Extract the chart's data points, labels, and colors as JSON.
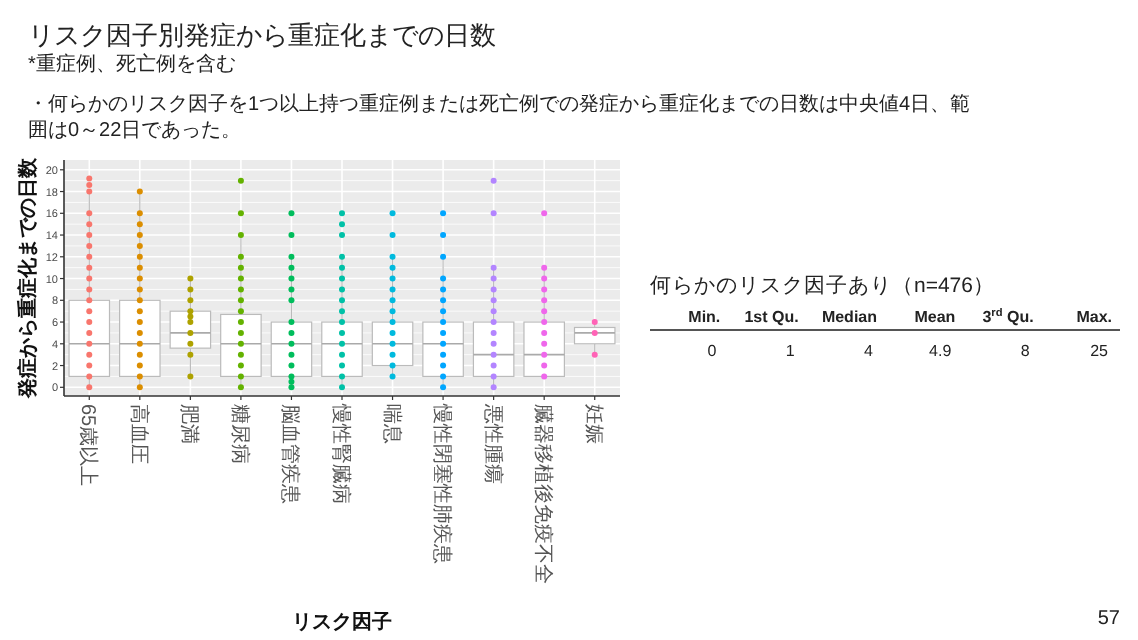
{
  "chart_data": [
    {
      "type": "box",
      "title": "リスク因子別発症から重症化までの日数",
      "subtitle": "*重症例、死亡例を含む",
      "annotations": [
        "・何らかのリスク因子を1つ以上持つ重症例または死亡例での発症から重症化までの日数は中央値4日、範囲は0～22日であった。",
        "57"
      ],
      "xlabel": "リスク因子",
      "ylabel": "発症から重症化までの日数",
      "categories": [
        "65歳以上",
        "高血圧",
        "肥満",
        "糖尿病",
        "脳血管疾患",
        "慢性腎臓病",
        "喘息",
        "慢性閉塞性肺疾患",
        "悪性腫瘍",
        "臓器移植後免疫不全",
        "妊娠"
      ],
      "boxes": [
        {
          "low": 0,
          "q1": 1,
          "median": 4,
          "q3": 8,
          "high": 18
        },
        {
          "low": 0,
          "q1": 1,
          "median": 4,
          "q3": 8,
          "high": 18
        },
        {
          "low": 1,
          "q1": 3.6,
          "median": 5,
          "q3": 7,
          "high": 10
        },
        {
          "low": 0,
          "q1": 1,
          "median": 4,
          "q3": 6.7,
          "high": 14
        },
        {
          "low": 0,
          "q1": 1,
          "median": 4,
          "q3": 6,
          "high": 12
        },
        {
          "low": 0,
          "q1": 1,
          "median": 4,
          "q3": 6,
          "high": 12
        },
        {
          "low": 1,
          "q1": 2,
          "median": 4,
          "q3": 6,
          "high": 12
        },
        {
          "low": 0,
          "q1": 1,
          "median": 4,
          "q3": 6,
          "high": 12
        },
        {
          "low": 0,
          "q1": 1,
          "median": 3,
          "q3": 6,
          "high": 11
        },
        {
          "low": 1,
          "q1": 1,
          "median": 3,
          "q3": 6,
          "high": 11
        },
        {
          "low": 3,
          "q1": 4,
          "median": 5,
          "q3": 5.5,
          "high": 6
        }
      ],
      "series": [
        {
          "type": "scatter",
          "color": "#f8766d",
          "x": [
            "65歳以上",
            "65歳以上",
            "65歳以上",
            "65歳以上",
            "65歳以上",
            "65歳以上",
            "65歳以上",
            "65歳以上",
            "65歳以上",
            "65歳以上",
            "65歳以上",
            "65歳以上",
            "65歳以上",
            "65歳以上",
            "65歳以上",
            "65歳以上",
            "65歳以上",
            "65歳以上",
            "65歳以上",
            "65歳以上"
          ],
          "values": [
            0,
            1,
            2,
            3,
            4,
            5,
            6,
            7,
            8,
            9,
            10,
            11,
            12,
            13,
            14,
            15,
            16,
            18,
            18.6,
            19.2
          ]
        },
        {
          "type": "scatter",
          "color": "#db8e00",
          "x": [
            "高血圧",
            "高血圧",
            "高血圧",
            "高血圧",
            "高血圧",
            "高血圧",
            "高血圧",
            "高血圧",
            "高血圧",
            "高血圧",
            "高血圧",
            "高血圧",
            "高血圧",
            "高血圧",
            "高血圧",
            "高血圧",
            "高血圧",
            "高血圧"
          ],
          "values": [
            0,
            1,
            2,
            3,
            4,
            5,
            6,
            7,
            8,
            9,
            10,
            11,
            12,
            13,
            14,
            15,
            16,
            18
          ]
        },
        {
          "type": "scatter",
          "color": "#aea200",
          "x": [
            "肥満",
            "肥満",
            "肥満",
            "肥満",
            "肥満",
            "肥満",
            "肥満",
            "肥満",
            "肥満",
            "肥満"
          ],
          "values": [
            1,
            3,
            4,
            5,
            6,
            6.5,
            7,
            8,
            9,
            10
          ]
        },
        {
          "type": "scatter",
          "color": "#64b200",
          "x": [
            "糖尿病",
            "糖尿病",
            "糖尿病",
            "糖尿病",
            "糖尿病",
            "糖尿病",
            "糖尿病",
            "糖尿病",
            "糖尿病",
            "糖尿病",
            "糖尿病",
            "糖尿病",
            "糖尿病",
            "糖尿病",
            "糖尿病",
            "糖尿病"
          ],
          "values": [
            0,
            1,
            2,
            3,
            4,
            5,
            6,
            7,
            8,
            9,
            10,
            11,
            12,
            14,
            16,
            19
          ]
        },
        {
          "type": "scatter",
          "color": "#00bd5c",
          "x": [
            "脳血管疾患",
            "脳血管疾患",
            "脳血管疾患",
            "脳血管疾患",
            "脳血管疾患",
            "脳血管疾患",
            "脳血管疾患",
            "脳血管疾患",
            "脳血管疾患",
            "脳血管疾患",
            "脳血管疾患",
            "脳血管疾患",
            "脳血管疾患",
            "脳血管疾患",
            "脳血管疾患"
          ],
          "values": [
            0,
            1,
            2,
            3,
            4,
            5,
            6,
            8,
            9,
            10,
            11,
            12,
            14,
            16,
            0.5
          ]
        },
        {
          "type": "scatter",
          "color": "#00c1a7",
          "x": [
            "慢性腎臓病",
            "慢性腎臓病",
            "慢性腎臓病",
            "慢性腎臓病",
            "慢性腎臓病",
            "慢性腎臓病",
            "慢性腎臓病",
            "慢性腎臓病",
            "慢性腎臓病",
            "慢性腎臓病",
            "慢性腎臓病",
            "慢性腎臓病",
            "慢性腎臓病",
            "慢性腎臓病",
            "慢性腎臓病",
            "慢性腎臓病"
          ],
          "values": [
            0,
            1,
            2,
            3,
            4,
            5,
            6,
            7,
            8,
            9,
            10,
            11,
            12,
            14,
            15,
            16
          ]
        },
        {
          "type": "scatter",
          "color": "#00bade",
          "x": [
            "喘息",
            "喘息",
            "喘息",
            "喘息",
            "喘息",
            "喘息",
            "喘息",
            "喘息",
            "喘息",
            "喘息",
            "喘息",
            "喘息",
            "喘息",
            "喘息"
          ],
          "values": [
            1,
            2,
            3,
            4,
            5,
            6,
            7,
            8,
            9,
            10,
            11,
            12,
            14,
            16
          ]
        },
        {
          "type": "scatter",
          "color": "#00a6ff",
          "x": [
            "慢性閉塞性肺疾患",
            "慢性閉塞性肺疾患",
            "慢性閉塞性肺疾患",
            "慢性閉塞性肺疾患",
            "慢性閉塞性肺疾患",
            "慢性閉塞性肺疾患",
            "慢性閉塞性肺疾患",
            "慢性閉塞性肺疾患",
            "慢性閉塞性肺疾患",
            "慢性閉塞性肺疾患",
            "慢性閉塞性肺疾患",
            "慢性閉塞性肺疾患",
            "慢性閉塞性肺疾患",
            "慢性閉塞性肺疾患"
          ],
          "values": [
            0,
            1,
            2,
            3,
            4,
            5,
            6,
            7,
            8,
            9,
            10,
            12,
            14,
            16
          ]
        },
        {
          "type": "scatter",
          "color": "#b385ff",
          "x": [
            "悪性腫瘍",
            "悪性腫瘍",
            "悪性腫瘍",
            "悪性腫瘍",
            "悪性腫瘍",
            "悪性腫瘍",
            "悪性腫瘍",
            "悪性腫瘍",
            "悪性腫瘍",
            "悪性腫瘍",
            "悪性腫瘍",
            "悪性腫瘍",
            "悪性腫瘍",
            "悪性腫瘍"
          ],
          "values": [
            0,
            1,
            2,
            3,
            4,
            5,
            6,
            7,
            8,
            9,
            10,
            11,
            16,
            19
          ]
        },
        {
          "type": "scatter",
          "color": "#ef67eb",
          "x": [
            "臓器移植後免疫不全",
            "臓器移植後免疫不全",
            "臓器移植後免疫不全",
            "臓器移植後免疫不全",
            "臓器移植後免疫不全",
            "臓器移植後免疫不全",
            "臓器移植後免疫不全",
            "臓器移植後免疫不全",
            "臓器移植後免疫不全",
            "臓器移植後免疫不全",
            "臓器移植後免疫不全",
            "臓器移植後免疫不全"
          ],
          "values": [
            1,
            2,
            3,
            4,
            5,
            6,
            7,
            8,
            9,
            10,
            11,
            16
          ]
        },
        {
          "type": "scatter",
          "color": "#ff63b6",
          "x": [
            "妊娠",
            "妊娠",
            "妊娠"
          ],
          "values": [
            3,
            5,
            6
          ]
        }
      ],
      "ylim": [
        -0.8,
        20.9
      ],
      "yticks": [
        0,
        2,
        4,
        6,
        8,
        10,
        12,
        14,
        16,
        18,
        20
      ],
      "grid": true
    },
    {
      "type": "other",
      "title": "何らかのリスク因子あり（n=476）",
      "categories": [
        "Min.",
        "1st Qu.",
        "Median",
        "Mean",
        "3$^{rd}$ Qu.",
        "Max."
      ],
      "values": [
        0,
        1,
        4,
        4.9,
        8,
        25
      ],
      "data_labels": true
    }
  ]
}
